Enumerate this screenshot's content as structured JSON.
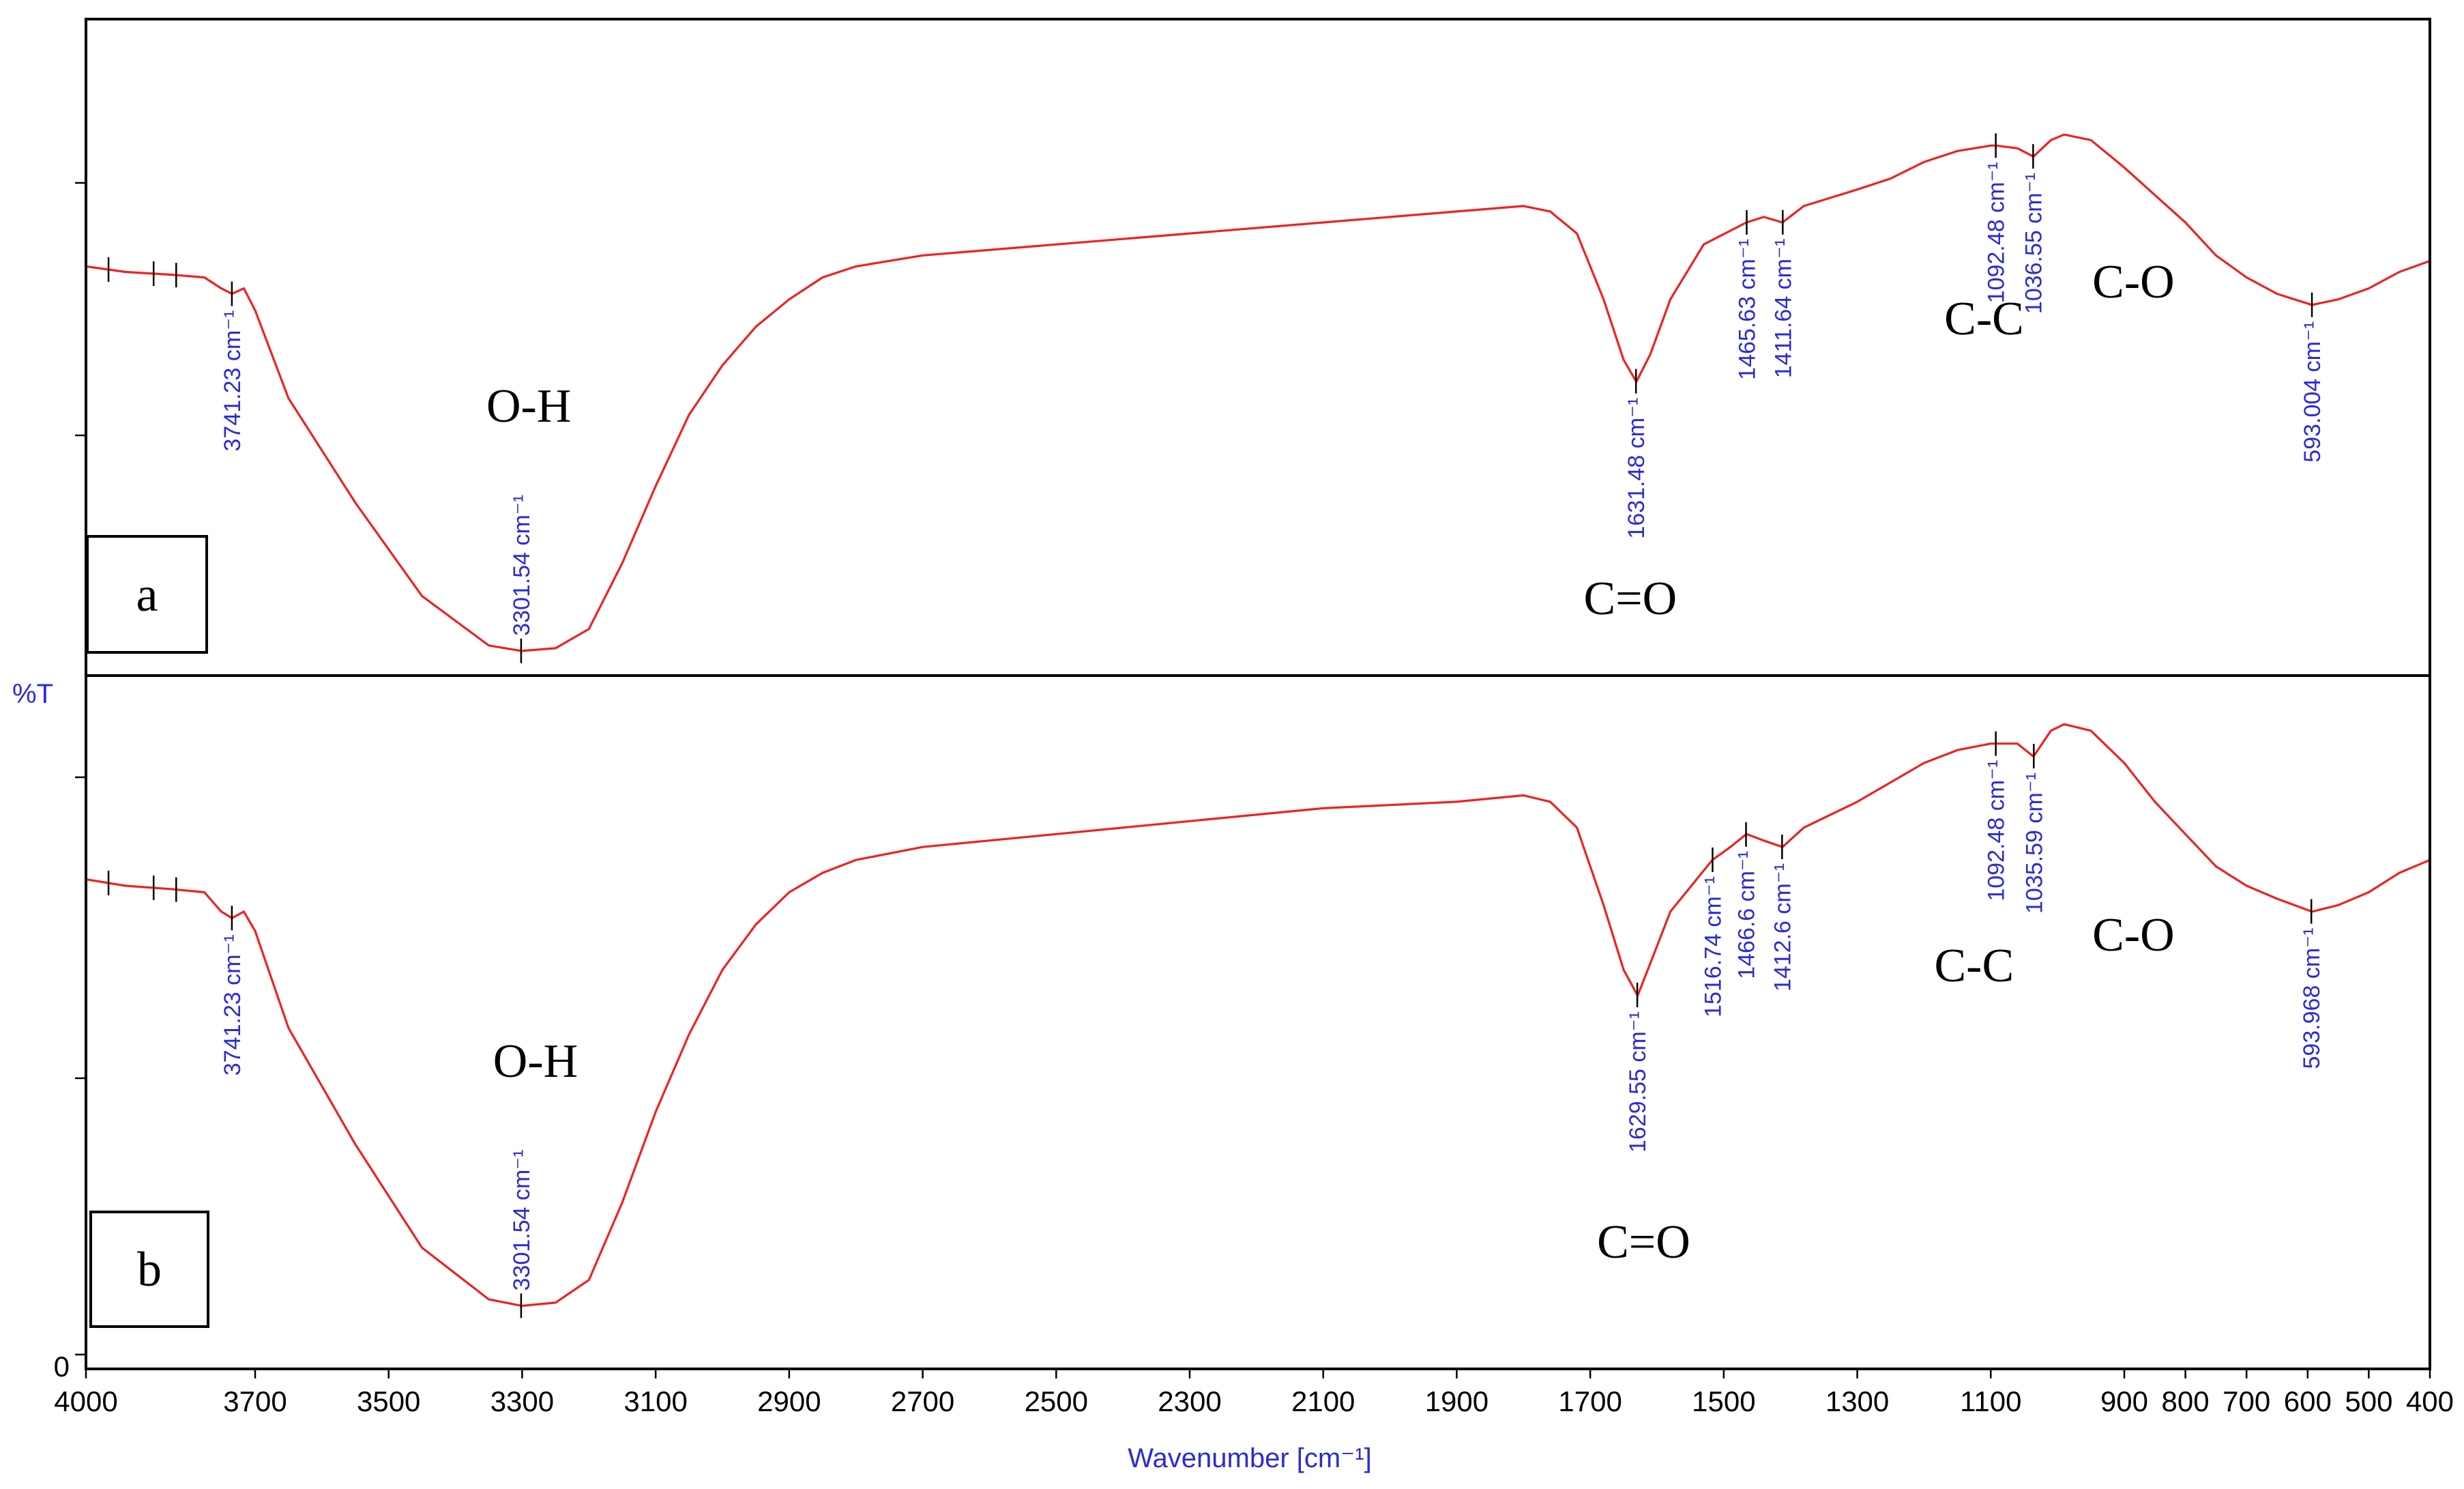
{
  "chart_data": {
    "type": "line",
    "xlabel": "Wavenumber [cm⁻¹]",
    "ylabel": "%T",
    "xlim": [
      4000,
      400
    ],
    "x_ticks": [
      4000,
      3700,
      3500,
      3300,
      3100,
      2900,
      2700,
      2500,
      2300,
      2100,
      1900,
      1700,
      1500,
      1300,
      1100,
      900,
      800,
      700,
      600,
      500,
      400
    ],
    "x_tick_labels": [
      "4000",
      "3700",
      "3500",
      "3300",
      "3100",
      "2900",
      "2700",
      "2500",
      "2300",
      "2100",
      "1900",
      "1700",
      "1500",
      "1300",
      "1100",
      "900",
      "800",
      "700",
      "600",
      "500",
      "400"
    ],
    "y_zero_label": "0",
    "line_color": "#ee2222",
    "label_color": "#2b2bd6",
    "panels": [
      {
        "label": "a",
        "points": [
          [
            4000,
            0.72
          ],
          [
            3930,
            0.71
          ],
          [
            3850,
            0.705
          ],
          [
            3790,
            0.7
          ],
          [
            3760,
            0.68
          ],
          [
            3741,
            0.67
          ],
          [
            3720,
            0.68
          ],
          [
            3700,
            0.64
          ],
          [
            3650,
            0.48
          ],
          [
            3550,
            0.29
          ],
          [
            3450,
            0.12
          ],
          [
            3350,
            0.03
          ],
          [
            3301,
            0.02
          ],
          [
            3250,
            0.025
          ],
          [
            3200,
            0.06
          ],
          [
            3150,
            0.18
          ],
          [
            3100,
            0.32
          ],
          [
            3050,
            0.45
          ],
          [
            3000,
            0.54
          ],
          [
            2950,
            0.61
          ],
          [
            2900,
            0.66
          ],
          [
            2850,
            0.7
          ],
          [
            2800,
            0.72
          ],
          [
            2700,
            0.74
          ],
          [
            2500,
            0.76
          ],
          [
            2300,
            0.78
          ],
          [
            2100,
            0.8
          ],
          [
            1900,
            0.82
          ],
          [
            1800,
            0.83
          ],
          [
            1760,
            0.82
          ],
          [
            1720,
            0.78
          ],
          [
            1680,
            0.66
          ],
          [
            1650,
            0.55
          ],
          [
            1631,
            0.51
          ],
          [
            1610,
            0.56
          ],
          [
            1580,
            0.66
          ],
          [
            1530,
            0.76
          ],
          [
            1466,
            0.8
          ],
          [
            1440,
            0.81
          ],
          [
            1412,
            0.8
          ],
          [
            1380,
            0.83
          ],
          [
            1300,
            0.86
          ],
          [
            1250,
            0.88
          ],
          [
            1200,
            0.91
          ],
          [
            1150,
            0.93
          ],
          [
            1100,
            0.94
          ],
          [
            1092,
            0.94
          ],
          [
            1060,
            0.935
          ],
          [
            1036,
            0.92
          ],
          [
            1010,
            0.95
          ],
          [
            990,
            0.96
          ],
          [
            950,
            0.95
          ],
          [
            900,
            0.9
          ],
          [
            850,
            0.85
          ],
          [
            800,
            0.8
          ],
          [
            750,
            0.74
          ],
          [
            700,
            0.7
          ],
          [
            650,
            0.67
          ],
          [
            593,
            0.65
          ],
          [
            550,
            0.66
          ],
          [
            500,
            0.68
          ],
          [
            450,
            0.71
          ],
          [
            400,
            0.73
          ]
        ],
        "peaks": [
          {
            "x": 3741.23,
            "label": "3741.23 cm⁻¹"
          },
          {
            "x": 3301.54,
            "label": "3301.54 cm⁻¹"
          },
          {
            "x": 1631.48,
            "label": "1631.48 cm⁻¹"
          },
          {
            "x": 1465.63,
            "label": "1465.63 cm⁻¹"
          },
          {
            "x": 1411.64,
            "label": "1411.64 cm⁻¹"
          },
          {
            "x": 1092.48,
            "label": "1092.48 cm⁻¹"
          },
          {
            "x": 1036.55,
            "label": "1036.55 cm⁻¹"
          },
          {
            "x": 593.004,
            "label": "593.004 cm⁻¹"
          }
        ],
        "minor_ticks": [
          3960,
          3880,
          3840
        ],
        "groups": [
          {
            "text": "O-H",
            "x": 3290
          },
          {
            "text": "C=O",
            "x": 1640
          },
          {
            "text": "C-C",
            "x": 1110
          },
          {
            "text": "C-O",
            "x": 885
          }
        ]
      },
      {
        "label": "b",
        "points": [
          [
            4000,
            0.69
          ],
          [
            3930,
            0.68
          ],
          [
            3850,
            0.675
          ],
          [
            3790,
            0.67
          ],
          [
            3760,
            0.64
          ],
          [
            3741,
            0.63
          ],
          [
            3720,
            0.64
          ],
          [
            3700,
            0.61
          ],
          [
            3650,
            0.46
          ],
          [
            3550,
            0.28
          ],
          [
            3450,
            0.12
          ],
          [
            3350,
            0.04
          ],
          [
            3301,
            0.03
          ],
          [
            3250,
            0.035
          ],
          [
            3200,
            0.07
          ],
          [
            3150,
            0.19
          ],
          [
            3100,
            0.33
          ],
          [
            3050,
            0.45
          ],
          [
            3000,
            0.55
          ],
          [
            2950,
            0.62
          ],
          [
            2900,
            0.67
          ],
          [
            2850,
            0.7
          ],
          [
            2800,
            0.72
          ],
          [
            2700,
            0.74
          ],
          [
            2500,
            0.76
          ],
          [
            2300,
            0.78
          ],
          [
            2100,
            0.8
          ],
          [
            1900,
            0.81
          ],
          [
            1800,
            0.82
          ],
          [
            1760,
            0.81
          ],
          [
            1720,
            0.77
          ],
          [
            1680,
            0.65
          ],
          [
            1650,
            0.55
          ],
          [
            1629,
            0.51
          ],
          [
            1610,
            0.56
          ],
          [
            1580,
            0.64
          ],
          [
            1517,
            0.72
          ],
          [
            1490,
            0.74
          ],
          [
            1466,
            0.76
          ],
          [
            1440,
            0.75
          ],
          [
            1412,
            0.74
          ],
          [
            1380,
            0.77
          ],
          [
            1300,
            0.81
          ],
          [
            1250,
            0.84
          ],
          [
            1200,
            0.87
          ],
          [
            1150,
            0.89
          ],
          [
            1100,
            0.9
          ],
          [
            1092,
            0.9
          ],
          [
            1060,
            0.9
          ],
          [
            1036,
            0.88
          ],
          [
            1010,
            0.92
          ],
          [
            990,
            0.93
          ],
          [
            950,
            0.92
          ],
          [
            900,
            0.87
          ],
          [
            850,
            0.81
          ],
          [
            800,
            0.76
          ],
          [
            750,
            0.71
          ],
          [
            700,
            0.68
          ],
          [
            650,
            0.66
          ],
          [
            593,
            0.64
          ],
          [
            550,
            0.65
          ],
          [
            500,
            0.67
          ],
          [
            450,
            0.7
          ],
          [
            400,
            0.72
          ]
        ],
        "peaks": [
          {
            "x": 3741.23,
            "label": "3741.23 cm⁻¹"
          },
          {
            "x": 3301.54,
            "label": "3301.54 cm⁻¹"
          },
          {
            "x": 1629.55,
            "label": "1629.55 cm⁻¹"
          },
          {
            "x": 1516.74,
            "label": "1516.74 cm⁻¹"
          },
          {
            "x": 1466.6,
            "label": "1466.6 cm⁻¹"
          },
          {
            "x": 1412.6,
            "label": "1412.6 cm⁻¹"
          },
          {
            "x": 1092.48,
            "label": "1092.48 cm⁻¹"
          },
          {
            "x": 1035.59,
            "label": "1035.59 cm⁻¹"
          },
          {
            "x": 593.968,
            "label": "593.968 cm⁻¹"
          }
        ],
        "minor_ticks": [
          3960,
          3880,
          3840
        ],
        "groups": [
          {
            "text": "O-H",
            "x": 3280
          },
          {
            "text": "C=O",
            "x": 1620
          },
          {
            "text": "C-C",
            "x": 1125
          },
          {
            "text": "C-O",
            "x": 885
          }
        ]
      }
    ]
  }
}
